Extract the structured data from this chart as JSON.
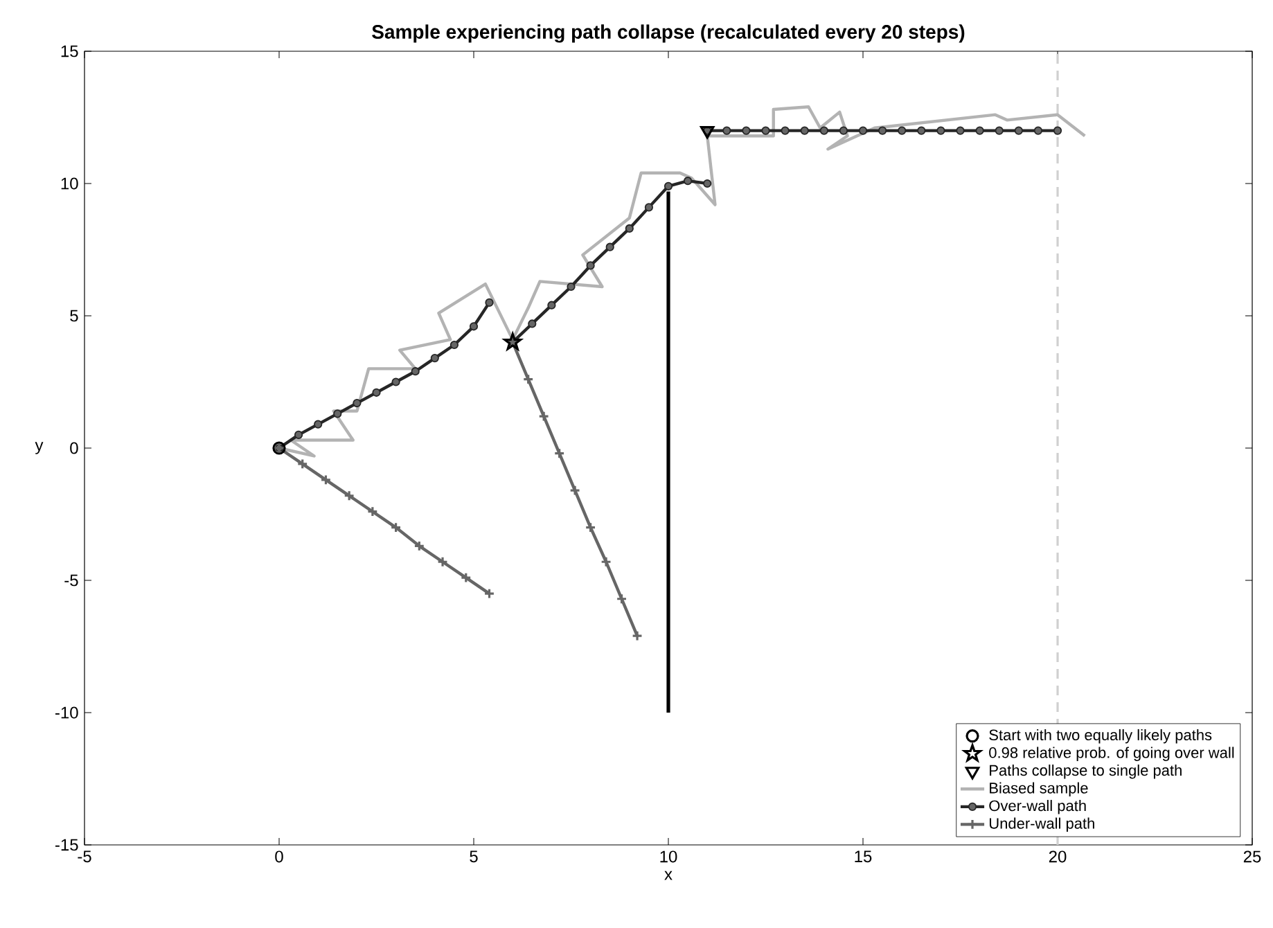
{
  "chart_data": {
    "type": "line",
    "title": "Sample experiencing path collapse (recalculated every 20 steps)",
    "xlabel": "x",
    "ylabel": "y",
    "xlim": [
      -5,
      25
    ],
    "ylim": [
      -15,
      15
    ],
    "xticks": [
      -5,
      0,
      5,
      10,
      15,
      20,
      25
    ],
    "yticks": [
      -15,
      -10,
      -5,
      0,
      5,
      10,
      15
    ],
    "grid": false,
    "legend": "bottom right",
    "series": [
      {
        "name": "Start with two equally likely paths",
        "type": "scatter",
        "marker": "circle",
        "color": "#000000",
        "x": [
          0
        ],
        "values": [
          0
        ]
      },
      {
        "name": "0.98 relative prob. of going over wall",
        "type": "scatter",
        "marker": "star",
        "color": "#000000",
        "x": [
          6
        ],
        "values": [
          4
        ]
      },
      {
        "name": "Paths collapse to single path",
        "type": "scatter",
        "marker": "triangle",
        "color": "#000000",
        "x": [
          11
        ],
        "values": [
          12
        ]
      },
      {
        "name": "Biased sample",
        "marker": "none",
        "color": "#b3b3b3",
        "x": [
          0,
          0.9,
          0.3,
          1.9,
          1.4,
          2.0,
          2.3,
          3.5,
          3.1,
          4.4,
          4.1,
          5.3,
          6.0,
          6.4,
          6.7,
          8.3,
          7.8,
          9.0,
          9.3,
          10.3,
          10.6,
          11.2,
          11.0,
          12.7,
          12.7,
          13.6,
          13.9,
          14.4,
          14.6,
          14.1,
          15.3,
          18.4,
          18.7,
          20.0,
          20.7
        ],
        "values": [
          0,
          -0.3,
          0.3,
          0.3,
          1.4,
          1.4,
          3.0,
          3.0,
          3.7,
          4.1,
          5.1,
          6.2,
          4.1,
          5.3,
          6.3,
          6.1,
          7.3,
          8.7,
          10.4,
          10.4,
          10.2,
          9.2,
          11.8,
          11.8,
          12.8,
          12.9,
          12.1,
          12.7,
          11.8,
          11.3,
          12.1,
          12.6,
          12.4,
          12.6,
          11.8
        ]
      },
      {
        "name": "Over-wall path",
        "marker": "circle",
        "color": "#262626",
        "x": [
          0,
          0.5,
          1,
          1.5,
          2,
          2.5,
          3,
          3.5,
          4,
          4.5,
          5,
          5.4,
          null,
          6,
          6.5,
          7,
          7.5,
          8,
          8.5,
          9,
          9.5,
          10,
          10.5,
          11,
          null,
          11,
          11.5,
          12,
          12.5,
          13,
          13.5,
          14,
          14.5,
          15,
          15.5,
          16,
          16.5,
          17,
          17.5,
          18,
          18.5,
          19,
          19.5,
          20
        ],
        "values": [
          0,
          0.5,
          0.9,
          1.3,
          1.7,
          2.1,
          2.5,
          2.9,
          3.4,
          3.9,
          4.6,
          5.5,
          null,
          4,
          4.7,
          5.4,
          6.1,
          6.9,
          7.6,
          8.3,
          9.1,
          9.9,
          10.1,
          10,
          null,
          12,
          12,
          12,
          12,
          12,
          12,
          12,
          12,
          12,
          12,
          12,
          12,
          12,
          12,
          12,
          12,
          12,
          12,
          12
        ]
      },
      {
        "name": "Under-wall path",
        "marker": "cross",
        "color": "#666666",
        "x": [
          0,
          0.6,
          1.2,
          1.8,
          2.4,
          3.0,
          3.6,
          4.2,
          4.8,
          5.4,
          null,
          6,
          6.4,
          6.8,
          7.2,
          7.6,
          8.0,
          8.4,
          8.8,
          9.2
        ],
        "values": [
          0,
          -0.6,
          -1.2,
          -1.8,
          -2.4,
          -3.0,
          -3.7,
          -4.3,
          -4.9,
          -5.5,
          null,
          4,
          2.6,
          1.2,
          -0.2,
          -1.6,
          -3.0,
          -4.3,
          -5.7,
          -7.1
        ]
      },
      {
        "marker": "none",
        "color": "#000000",
        "x": [
          10,
          10
        ],
        "values": [
          -10,
          9.7
        ]
      }
    ],
    "ref_lines": [
      {
        "axis": "x",
        "value": 20,
        "color": "#d0d0d0",
        "line_style": "dashed"
      }
    ]
  }
}
